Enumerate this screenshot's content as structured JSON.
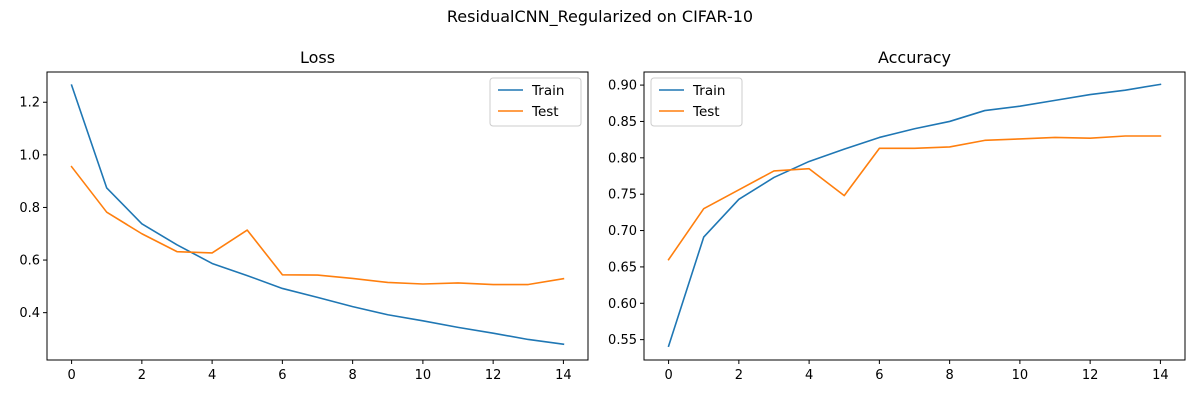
{
  "figure": {
    "title": "ResidualCNN_Regularized on CIFAR-10"
  },
  "colors": {
    "train": "#1f77b4",
    "test": "#ff7f0e"
  },
  "chart_data": [
    {
      "type": "line",
      "title": "Loss",
      "xlabel": "",
      "ylabel": "",
      "x": [
        0,
        1,
        2,
        3,
        4,
        5,
        6,
        7,
        8,
        9,
        10,
        11,
        12,
        13,
        14
      ],
      "xlim": [
        -0.7,
        14.7
      ],
      "ylim": [
        0.22,
        1.315
      ],
      "xticks": [
        0,
        2,
        4,
        6,
        8,
        10,
        12,
        14
      ],
      "yticks": [
        0.4,
        0.6,
        0.8,
        1.0,
        1.2
      ],
      "ytick_labels": [
        "0.4",
        "0.6",
        "0.8",
        "1.0",
        "1.2"
      ],
      "grid": false,
      "legend": "upper-right",
      "series": [
        {
          "name": "Train",
          "values": [
            1.265,
            0.874,
            0.738,
            0.658,
            0.587,
            0.541,
            0.492,
            0.458,
            0.423,
            0.392,
            0.369,
            0.344,
            0.322,
            0.298,
            0.28
          ]
        },
        {
          "name": "Test",
          "values": [
            0.955,
            0.782,
            0.7,
            0.632,
            0.627,
            0.714,
            0.544,
            0.543,
            0.53,
            0.515,
            0.509,
            0.513,
            0.507,
            0.507,
            0.529
          ]
        }
      ]
    },
    {
      "type": "line",
      "title": "Accuracy",
      "xlabel": "",
      "ylabel": "",
      "x": [
        0,
        1,
        2,
        3,
        4,
        5,
        6,
        7,
        8,
        9,
        10,
        11,
        12,
        13,
        14
      ],
      "xlim": [
        -0.7,
        14.7
      ],
      "ylim": [
        0.522,
        0.918
      ],
      "xticks": [
        0,
        2,
        4,
        6,
        8,
        10,
        12,
        14
      ],
      "yticks": [
        0.55,
        0.6,
        0.65,
        0.7,
        0.75,
        0.8,
        0.85,
        0.9
      ],
      "ytick_labels": [
        "0.55",
        "0.60",
        "0.65",
        "0.70",
        "0.75",
        "0.80",
        "0.85",
        "0.90"
      ],
      "grid": false,
      "legend": "upper-left",
      "series": [
        {
          "name": "Train",
          "values": [
            0.541,
            0.691,
            0.743,
            0.773,
            0.795,
            0.812,
            0.828,
            0.84,
            0.85,
            0.865,
            0.871,
            0.879,
            0.887,
            0.893,
            0.901
          ]
        },
        {
          "name": "Test",
          "values": [
            0.66,
            0.73,
            0.756,
            0.782,
            0.785,
            0.748,
            0.813,
            0.813,
            0.815,
            0.824,
            0.826,
            0.828,
            0.827,
            0.83,
            0.83
          ]
        }
      ]
    }
  ]
}
